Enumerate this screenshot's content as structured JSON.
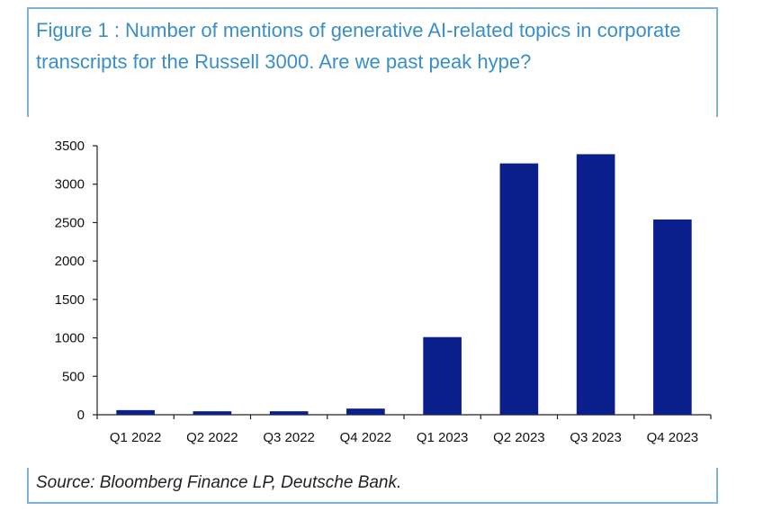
{
  "title": "Figure 1 : Number of mentions of generative AI-related topics in corporate transcripts for the Russell 3000. Are we past peak hype?",
  "source": "Source: Bloomberg Finance LP, Deutsche Bank.",
  "colors": {
    "bar": "#0a1e8c",
    "title": "#3a8ec8",
    "frame": "#7fb2d9"
  },
  "chart_data": {
    "type": "bar",
    "categories": [
      "Q1 2022",
      "Q2 2022",
      "Q3 2022",
      "Q4 2022",
      "Q1 2023",
      "Q2 2023",
      "Q3 2023",
      "Q4 2023"
    ],
    "values": [
      60,
      45,
      45,
      80,
      1010,
      3270,
      3390,
      2540
    ],
    "ylim": [
      0,
      3500
    ],
    "yticks": [
      0,
      500,
      1000,
      1500,
      2000,
      2500,
      3000,
      3500
    ],
    "grid": false,
    "legend": "none"
  }
}
